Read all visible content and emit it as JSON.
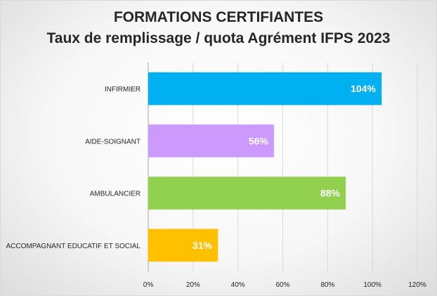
{
  "chart_data": {
    "type": "bar",
    "orientation": "horizontal",
    "title": "FORMATIONS CERTIFIANTES",
    "subtitle": "Taux de remplissage / quota Agrément IFPS 2023",
    "categories": [
      "INFIRMIER",
      "AIDE-SOIGNANT",
      "AMBULANCIER",
      "ACCOMPAGNANT EDUCATIF ET SOCIAL"
    ],
    "values": [
      104,
      56,
      88,
      31
    ],
    "data_labels": [
      "104%",
      "56%",
      "88%",
      "31%"
    ],
    "colors": [
      "#00b0f0",
      "#cc99ff",
      "#92d050",
      "#ffc000"
    ],
    "xlim": [
      0,
      120
    ],
    "xticks": [
      0,
      20,
      40,
      60,
      80,
      100,
      120
    ],
    "xtick_labels": [
      "0%",
      "20%",
      "40%",
      "60%",
      "80%",
      "100%",
      "120%"
    ],
    "grid": true,
    "legend": "none"
  }
}
